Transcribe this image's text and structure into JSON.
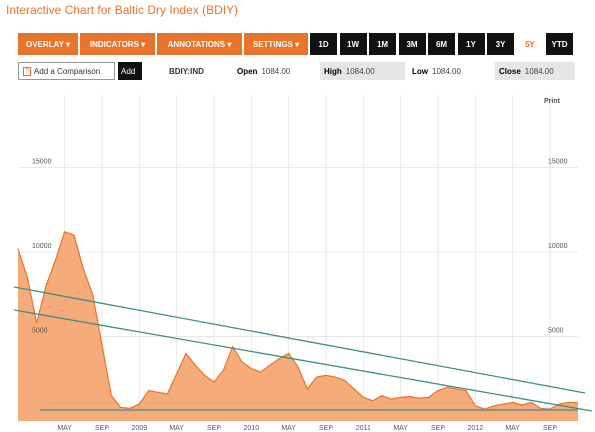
{
  "header": {
    "title": "Interactive Chart for Baltic Dry Index (BDIY)"
  },
  "toolbar": {
    "menus": [
      "OVERLAY ▾",
      "INDICATORS ▾",
      "ANNOTATIONS ▾",
      "SETTINGS ▾"
    ],
    "ranges": [
      "1D",
      "1W",
      "1M",
      "3M",
      "6M",
      "1Y",
      "3Y",
      "5Y",
      "YTD"
    ]
  },
  "quote_bar": {
    "comparison_placeholder": "Add a Comparison",
    "add_button": "Add",
    "symbol": "BDIY:IND",
    "fields": [
      {
        "label": "Open",
        "value": "1084.00"
      },
      {
        "label": "High",
        "value": "1084.00"
      },
      {
        "label": "Low",
        "value": "1084.00"
      },
      {
        "label": "Close",
        "value": "1084.00"
      }
    ]
  },
  "print_label": "Print",
  "chart_data": {
    "type": "area",
    "color": "#e8732a",
    "fill": "#f6ab7a",
    "categories": [
      null,
      null,
      null,
      null,
      null,
      "MAY",
      null,
      null,
      null,
      "SEP",
      null,
      null,
      null,
      "2009",
      null,
      null,
      null,
      "MAY",
      null,
      null,
      null,
      "SEP",
      null,
      null,
      null,
      "2010",
      null,
      null,
      null,
      "MAY",
      null,
      null,
      null,
      "SEP",
      null,
      null,
      null,
      "2011",
      null,
      null,
      null,
      "MAY",
      null,
      null,
      null,
      "SEP",
      null,
      null,
      null,
      "2012",
      null,
      null,
      null,
      "MAY",
      null,
      null,
      null,
      "SEP",
      null,
      null,
      null
    ],
    "values": [
      10200,
      8500,
      5800,
      8000,
      9500,
      11200,
      11000,
      9000,
      7500,
      4500,
      1500,
      800,
      750,
      1000,
      1800,
      1700,
      1600,
      2800,
      4000,
      3300,
      2700,
      2300,
      3000,
      4400,
      3500,
      3100,
      2900,
      3300,
      3700,
      4000,
      3200,
      1900,
      2600,
      2700,
      2600,
      2400,
      1900,
      1400,
      1200,
      1500,
      1300,
      1400,
      1450,
      1350,
      1400,
      1800,
      2000,
      1900,
      1800,
      900,
      700,
      900,
      1000,
      1100,
      950,
      1100,
      750,
      700,
      1000,
      1100,
      1084
    ],
    "ylim": [
      0,
      19300
    ],
    "yticks": [
      5000,
      10000,
      15000
    ],
    "grid": true
  }
}
